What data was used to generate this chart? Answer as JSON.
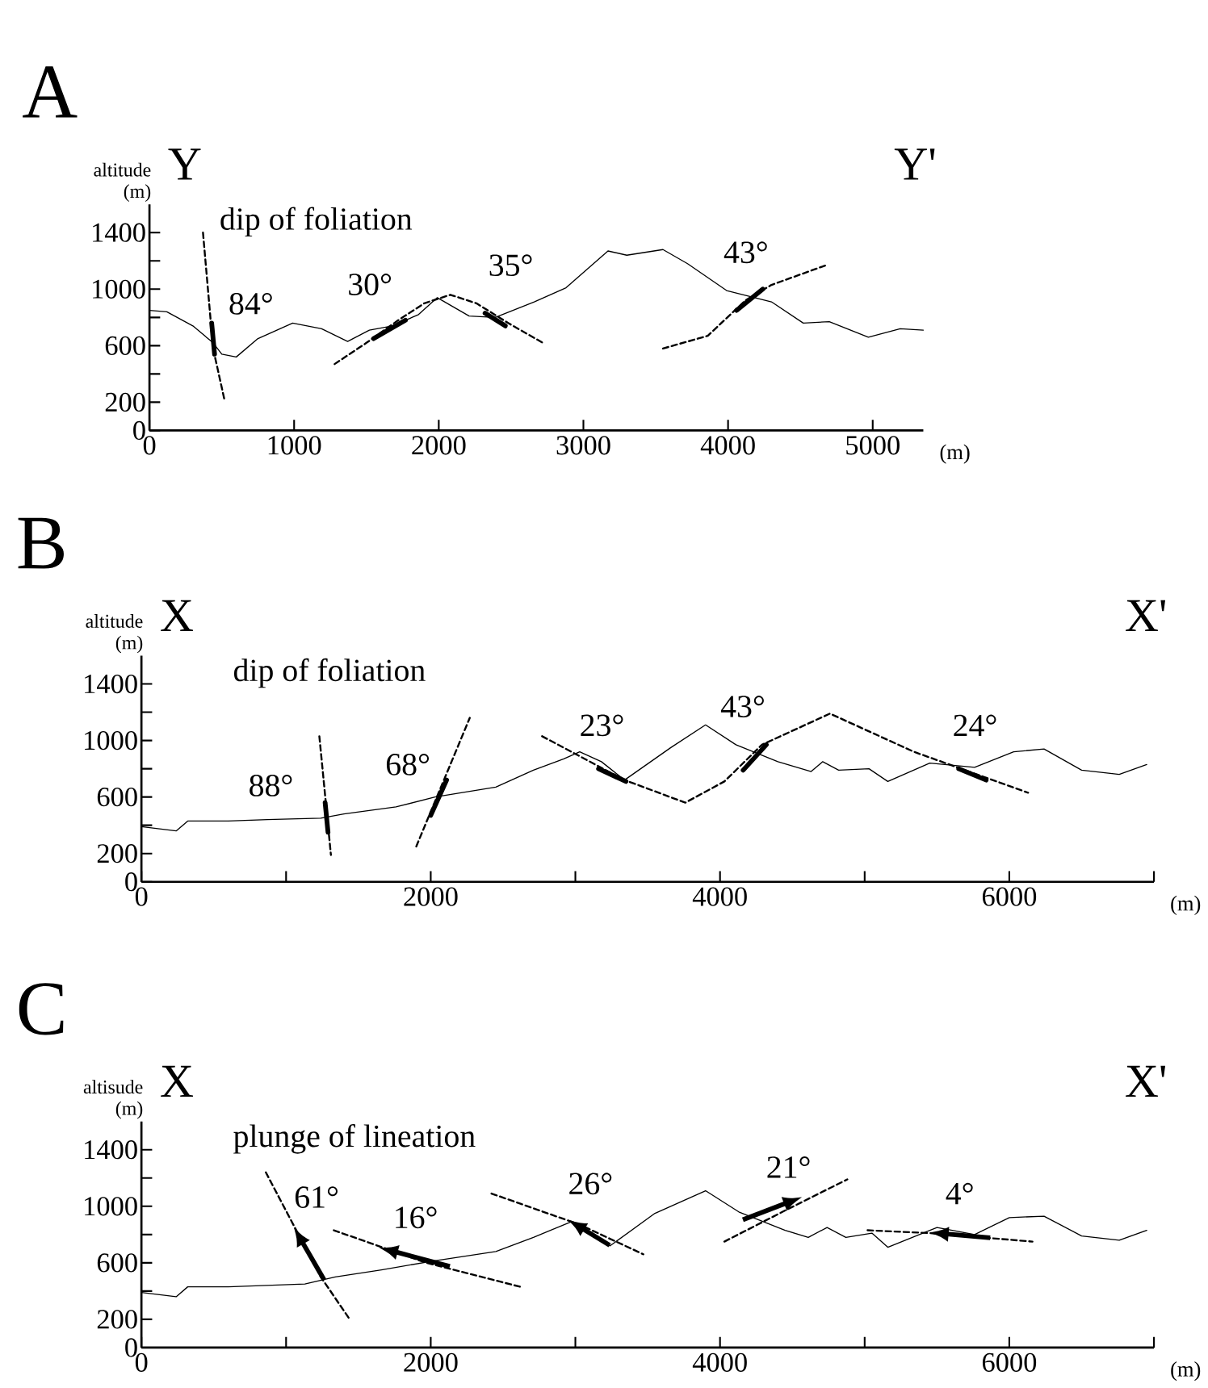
{
  "chart_data": [
    {
      "type": "line",
      "title": "A",
      "subtitle": "dip of foliation",
      "ylabel": "altitude (m)",
      "xlabel": "(m)",
      "xlim": [
        0,
        5350
      ],
      "ylim": [
        0,
        1600
      ],
      "xticks": [
        0,
        1000,
        2000,
        3000,
        4000,
        5000
      ],
      "yticks": [
        0,
        200,
        {
          "value": 400,
          "label": null
        },
        600,
        {
          "value": 800,
          "label": null
        },
        1000,
        {
          "value": 1200,
          "label": null
        },
        1400
      ],
      "series": [
        {
          "color": "#000000",
          "x": [
            0,
            120,
            300,
            440,
            500,
            600,
            750,
            990,
            1190,
            1370,
            1520,
            1680,
            1860,
            1990,
            2210,
            2390,
            2660,
            2880,
            3170,
            3300,
            3550,
            3720,
            3990,
            4300,
            4520,
            4700,
            4970,
            5190,
            5350
          ],
          "values": [
            850,
            840,
            740,
            620,
            540,
            520,
            650,
            760,
            720,
            630,
            710,
            740,
            820,
            940,
            810,
            800,
            910,
            1010,
            1270,
            1240,
            1280,
            1180,
            990,
            910,
            760,
            770,
            660,
            720,
            710
          ]
        },
        {
          "color": "#000000",
          "line_style": "dashed",
          "x": [
            370,
            440,
            520
          ],
          "values": [
            1400,
            580,
            210
          ]
        },
        {
          "color": "#000000",
          "line_style": "dashed",
          "x": [
            1280,
            1500,
            1720,
            1900,
            2080,
            2260,
            2480,
            2720
          ],
          "values": [
            470,
            620,
            780,
            900,
            960,
            900,
            760,
            620
          ]
        },
        {
          "color": "#000000",
          "line_style": "dashed",
          "x": [
            3550,
            3860,
            4120,
            4300,
            4680
          ],
          "values": [
            580,
            670,
            920,
            1030,
            1170
          ]
        },
        {
          "color": "#000000",
          "line_style": "solid",
          "x": [
            1550,
            1770
          ],
          "values": [
            650,
            780
          ]
        },
        {
          "color": "#000000",
          "line_style": "solid",
          "x": [
            2320,
            2460
          ],
          "values": [
            830,
            740
          ]
        },
        {
          "color": "#000000",
          "line_style": "solid",
          "x": [
            4060,
            4240
          ],
          "values": [
            850,
            1000
          ]
        },
        {
          "color": "#000000",
          "line_style": "solid",
          "x": [
            430,
            450
          ],
          "values": [
            760,
            540
          ]
        }
      ],
      "annotations": [
        "Y",
        "Y'",
        "84°",
        "30°",
        "35°",
        "43°"
      ]
    },
    {
      "type": "line",
      "title": "B",
      "subtitle": "dip of foliation",
      "ylabel": "altitude (m)",
      "xlabel": "(m)",
      "xlim": [
        0,
        7000
      ],
      "ylim": [
        0,
        1600
      ],
      "xticks": [
        0,
        {
          "value": 1000,
          "label": null
        },
        2000,
        {
          "value": 3000,
          "label": null
        },
        4000,
        {
          "value": 5000,
          "label": null
        },
        6000,
        {
          "value": 7000,
          "label": null
        }
      ],
      "yticks": [
        0,
        200,
        {
          "value": 400,
          "label": null
        },
        600,
        {
          "value": 800,
          "label": null
        },
        1000,
        {
          "value": 1200,
          "label": null
        },
        1400
      ],
      "series": [
        {
          "color": "#000000",
          "x": [
            0,
            240,
            320,
            600,
            870,
            1240,
            1400,
            1760,
            2030,
            2450,
            2710,
            2920,
            3030,
            3180,
            3340,
            3660,
            3900,
            4110,
            4400,
            4630,
            4710,
            4820,
            5030,
            5160,
            5450,
            5760,
            6030,
            6240,
            6500,
            6760,
            6950
          ],
          "values": [
            390,
            360,
            430,
            430,
            440,
            450,
            480,
            530,
            600,
            670,
            790,
            870,
            920,
            850,
            720,
            950,
            1110,
            970,
            850,
            780,
            850,
            790,
            800,
            710,
            840,
            810,
            920,
            940,
            790,
            760,
            830
          ]
        },
        {
          "color": "#000000",
          "line_style": "dashed",
          "x": [
            1230,
            1310
          ],
          "values": [
            1030,
            190
          ]
        },
        {
          "color": "#000000",
          "line_style": "dashed",
          "x": [
            1900,
            2270
          ],
          "values": [
            250,
            1160
          ]
        },
        {
          "color": "#000000",
          "line_style": "dashed",
          "x": [
            2770,
            3340,
            3760,
            4030,
            4290,
            4760,
            5340,
            6130
          ],
          "values": [
            1030,
            720,
            560,
            710,
            970,
            1190,
            920,
            630
          ]
        },
        {
          "color": "#000000",
          "line_style": "solid",
          "x": [
            1270,
            1290
          ],
          "values": [
            560,
            350
          ]
        },
        {
          "color": "#000000",
          "line_style": "solid",
          "x": [
            2000,
            2110
          ],
          "values": [
            470,
            720
          ]
        },
        {
          "color": "#000000",
          "line_style": "solid",
          "x": [
            3160,
            3350
          ],
          "values": [
            800,
            710
          ]
        },
        {
          "color": "#000000",
          "line_style": "solid",
          "x": [
            4160,
            4320
          ],
          "values": [
            790,
            970
          ]
        },
        {
          "color": "#000000",
          "line_style": "solid",
          "x": [
            5650,
            5840
          ],
          "values": [
            800,
            720
          ]
        }
      ],
      "annotations": [
        "X",
        "X'",
        "88°",
        "68°",
        "23°",
        "43°",
        "24°"
      ]
    },
    {
      "type": "line",
      "title": "C",
      "subtitle": "plunge of lineation",
      "ylabel": "altisude (m)",
      "xlabel": "(m)",
      "xlim": [
        0,
        7000
      ],
      "ylim": [
        0,
        1600
      ],
      "xticks": [
        0,
        {
          "value": 1000,
          "label": null
        },
        2000,
        {
          "value": 3000,
          "label": null
        },
        4000,
        {
          "value": 5000,
          "label": null
        },
        6000,
        {
          "value": 7000,
          "label": null
        }
      ],
      "yticks": [
        0,
        200,
        {
          "value": 400,
          "label": null
        },
        600,
        {
          "value": 800,
          "label": null
        },
        1000,
        {
          "value": 1200,
          "label": null
        },
        1400
      ],
      "series": [
        {
          "color": "#000000",
          "x": [
            0,
            240,
            320,
            600,
            1130,
            1340,
            1660,
            2000,
            2450,
            2710,
            2970,
            3240,
            3550,
            3900,
            4130,
            4450,
            4610,
            4740,
            4870,
            5050,
            5160,
            5500,
            5760,
            6000,
            6240,
            6500,
            6760,
            6950
          ],
          "values": [
            390,
            360,
            430,
            430,
            450,
            500,
            550,
            610,
            680,
            780,
            890,
            720,
            950,
            1110,
            960,
            830,
            780,
            850,
            780,
            810,
            710,
            850,
            800,
            920,
            930,
            790,
            760,
            830
          ]
        },
        {
          "color": "#000000",
          "line_style": "dashed",
          "x": [
            860,
            1050,
            1240,
            1440
          ],
          "values": [
            1240,
            870,
            500,
            200
          ]
        },
        {
          "color": "#000000",
          "line_style": "dashed",
          "x": [
            1330,
            1970,
            2620
          ],
          "values": [
            830,
            600,
            430
          ]
        },
        {
          "color": "#000000",
          "line_style": "dashed",
          "x": [
            2420,
            3030,
            3470
          ],
          "values": [
            1090,
            870,
            660
          ]
        },
        {
          "color": "#000000",
          "line_style": "dashed",
          "x": [
            4030,
            4450,
            4880
          ],
          "values": [
            750,
            970,
            1190
          ]
        },
        {
          "color": "#000000",
          "line_style": "dashed",
          "x": [
            5020,
            5450,
            6160
          ],
          "values": [
            830,
            810,
            750
          ]
        }
      ],
      "annotations": [
        "X",
        "X'",
        "61°",
        "16°",
        "26°",
        "21°",
        "4°"
      ]
    }
  ]
}
